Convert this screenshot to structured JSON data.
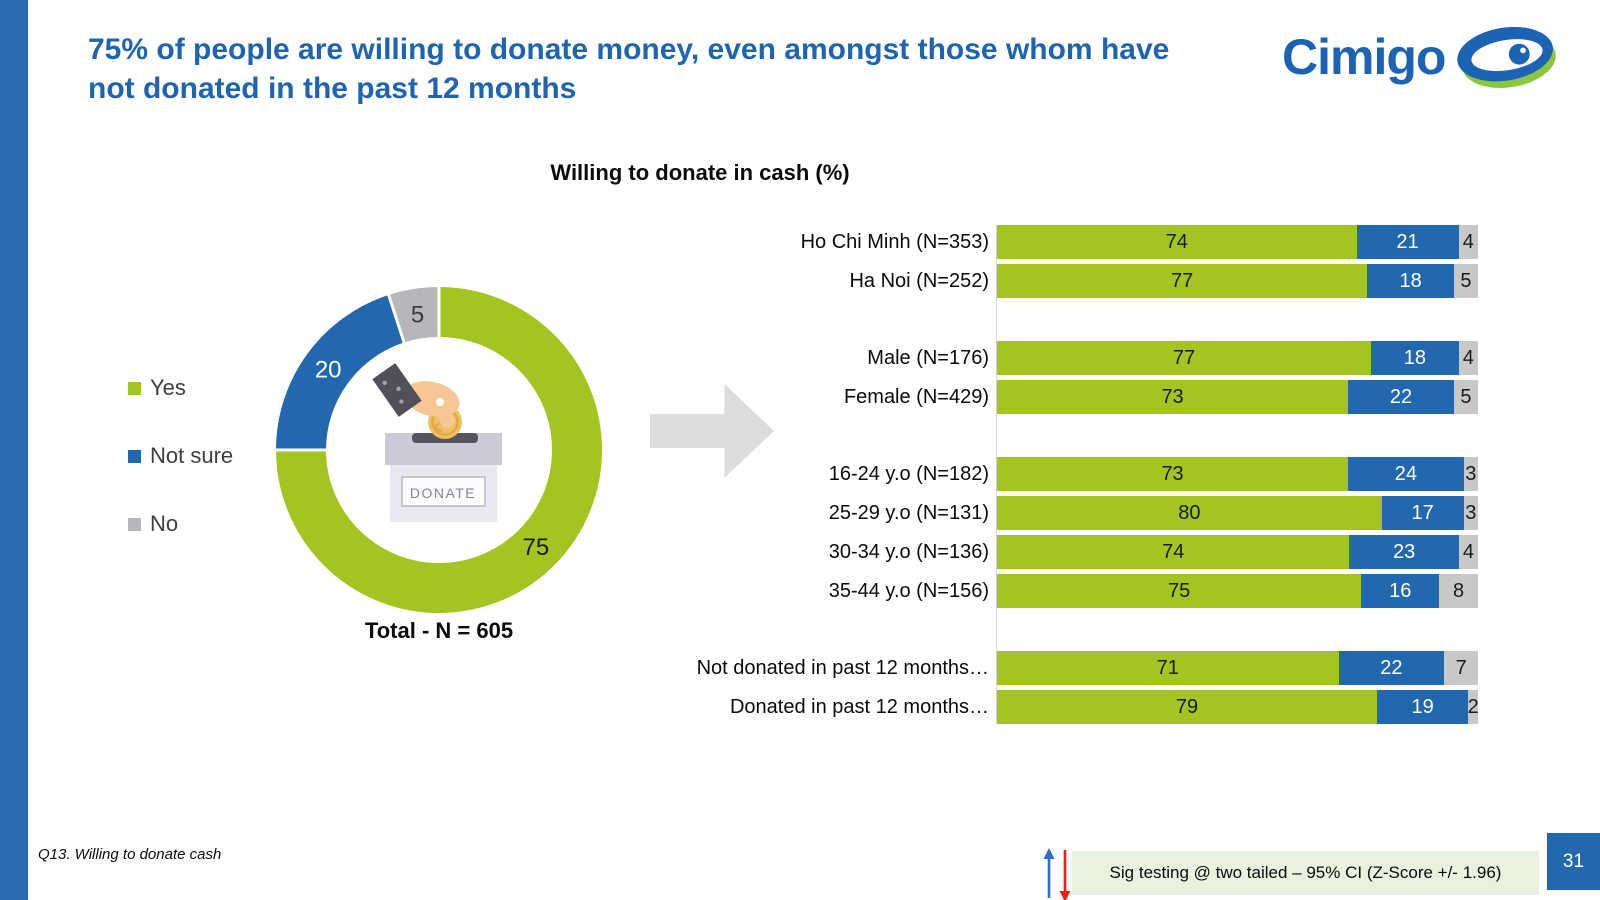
{
  "header": {
    "title": "75% of people are willing to donate money, even amongst those whom have not donated in the past 12 months",
    "logo_text": "Cimigo"
  },
  "chart_heading": "Willing to donate in cash (%)",
  "donut_center_label": "DONATE",
  "donut_total": "Total - N = 605",
  "footer": {
    "note": "Q13. Willing to donate cash",
    "sig_text": "Sig testing @ two tailed – 95% CI (Z-Score +/- 1.96)",
    "page": "31"
  },
  "colors": {
    "yes": "#A4C521",
    "not_sure": "#2268AE",
    "no_bar": "#C8C8C8",
    "no_donut": "#B7B7BB",
    "accent_bar": "#2A6CB0",
    "title_text": "#1F64B0",
    "logo_blue": "#1C63B4",
    "logo_green": "#8CC63E",
    "page_box": "#2268AE",
    "sig_bg": "#E8F2DF",
    "big_arrow": "#DCDCDC",
    "arrow_up": "#2E6DC8",
    "arrow_down": "#E8211D",
    "donut_value_text": [
      "#1A1A1A",
      "#FFFFFF",
      "#3C3C3C"
    ],
    "bar_value_text": [
      "#1A1A1A",
      "#FFFFFF",
      "#1A1A1A"
    ]
  },
  "chart_data": [
    {
      "type": "pie",
      "style": "donut",
      "title": "Willing to donate in cash (%) - Total",
      "labels": [
        "Yes",
        "Not sure",
        "No"
      ],
      "values": [
        75,
        20,
        5
      ],
      "annotation": "Total - N = 605",
      "legend_position": "left",
      "start_angle_deg": 0,
      "direction": "clockwise"
    },
    {
      "type": "bar",
      "orientation": "horizontal",
      "stacked": true,
      "normalized_to_100": true,
      "title": "Willing to donate in cash (%)",
      "xlim": [
        0,
        100
      ],
      "grid": false,
      "categories": [
        "Ho Chi Minh (N=353)",
        "Ha Noi (N=252)",
        "Male (N=176)",
        "Female (N=429)",
        "16-24 y.o (N=182)",
        "25-29 y.o (N=131)",
        "30-34 y.o (N=136)",
        "35-44 y.o (N=156)",
        "Not donated in past 12 months…",
        "Donated in past 12 months…"
      ],
      "group_sizes": [
        2,
        2,
        4,
        2
      ],
      "series": [
        {
          "name": "Yes",
          "values": [
            74,
            77,
            77,
            73,
            73,
            80,
            74,
            75,
            71,
            79
          ]
        },
        {
          "name": "Not sure",
          "values": [
            21,
            18,
            18,
            22,
            24,
            17,
            23,
            16,
            22,
            19
          ]
        },
        {
          "name": "No",
          "values": [
            4,
            5,
            4,
            5,
            3,
            3,
            4,
            8,
            7,
            2
          ]
        }
      ]
    }
  ]
}
